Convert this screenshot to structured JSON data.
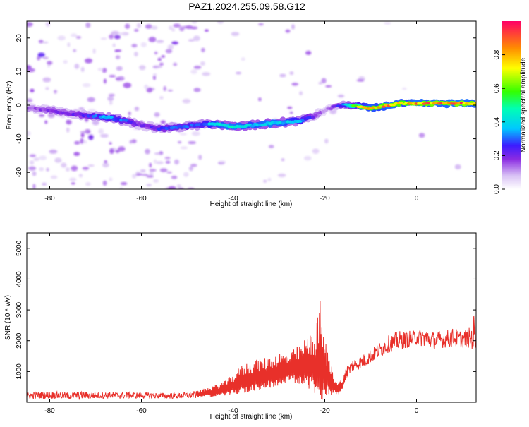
{
  "title": "PAZ1.2024.255.09.58.G12",
  "chart_data": [
    {
      "type": "heatmap",
      "xlabel": "Height of straight line (km)",
      "ylabel": "Frequency (Hz)",
      "xlim": [
        -85,
        13
      ],
      "ylim": [
        -25,
        25
      ],
      "xticks": [
        -80,
        -60,
        -40,
        -20,
        0
      ],
      "yticks": [
        -20,
        -10,
        0,
        10,
        20
      ],
      "colorbar": {
        "label": "Normalized spectral amplitude",
        "range": [
          0,
          1
        ],
        "ticks": [
          0,
          0.2,
          0.4,
          0.6,
          0.8
        ],
        "tick_labels": [
          "0.0",
          "0.2",
          "0.4",
          "0.6",
          "0.8"
        ]
      },
      "ridge": {
        "x": [
          -84,
          -80,
          -76,
          -72,
          -68,
          -64,
          -60,
          -56,
          -52,
          -48,
          -44,
          -40,
          -36,
          -32,
          -28,
          -25,
          -22,
          -20,
          -18,
          -16,
          -14,
          -12,
          -10,
          -8,
          -6,
          -4,
          -2,
          0,
          2,
          4,
          6,
          8,
          10,
          13
        ],
        "freq": [
          -1,
          -1.5,
          -2.5,
          -3,
          -3.5,
          -4.5,
          -6,
          -7,
          -6.5,
          -6,
          -5.5,
          -6.5,
          -6,
          -5.5,
          -5,
          -4.5,
          -3,
          -1.5,
          -0.5,
          0,
          0,
          -0.5,
          -1,
          -0.5,
          0,
          0.5,
          0.5,
          0.5,
          0.5,
          0.5,
          0.5,
          0.5,
          0.5,
          0.5
        ],
        "amplitude": [
          0.15,
          0.2,
          0.2,
          0.25,
          0.35,
          0.3,
          0.2,
          0.25,
          0.3,
          0.3,
          0.4,
          0.45,
          0.4,
          0.45,
          0.4,
          0.35,
          0.2,
          0.1,
          0.2,
          0.3,
          0.55,
          0.75,
          0.85,
          0.8,
          0.9,
          0.85,
          0.8,
          0.9,
          0.85,
          0.9,
          0.85,
          0.9,
          0.9,
          0.85
        ]
      }
    },
    {
      "type": "line",
      "xlabel": "Height of straight line (km)",
      "ylabel": "SNR (10 * v/v)",
      "xlim": [
        -85,
        13
      ],
      "ylim": [
        0,
        5500
      ],
      "xticks": [
        -80,
        -60,
        -40,
        -20,
        0
      ],
      "yticks": [
        1000,
        2000,
        3000,
        4000,
        5000
      ],
      "color": "#e8302a",
      "envelope": {
        "x": [
          -85,
          -80,
          -75,
          -70,
          -65,
          -60,
          -55,
          -50,
          -48,
          -45,
          -42,
          -40,
          -38,
          -35,
          -32,
          -30,
          -28,
          -26,
          -24,
          -22,
          -21,
          -20,
          -19,
          -18,
          -17,
          -16,
          -15,
          -14,
          -12,
          -10,
          -8,
          -6,
          -4,
          -2,
          0,
          2,
          4,
          6,
          8,
          10,
          12,
          13
        ],
        "base": [
          220,
          230,
          220,
          230,
          220,
          220,
          210,
          220,
          240,
          300,
          380,
          500,
          650,
          750,
          850,
          950,
          1000,
          1050,
          1100,
          1050,
          1000,
          900,
          700,
          500,
          400,
          600,
          1000,
          1200,
          1300,
          1500,
          1700,
          1900,
          2000,
          2050,
          2100,
          2100,
          2000,
          2050,
          2100,
          2050,
          2100,
          2300
        ],
        "amp": [
          150,
          160,
          180,
          170,
          150,
          150,
          130,
          150,
          180,
          250,
          350,
          500,
          700,
          800,
          750,
          800,
          700,
          900,
          1200,
          1600,
          2800,
          1400,
          900,
          500,
          300,
          300,
          300,
          300,
          300,
          350,
          350,
          400,
          450,
          400,
          350,
          450,
          400,
          400,
          450,
          400,
          500,
          1400
        ]
      }
    }
  ]
}
